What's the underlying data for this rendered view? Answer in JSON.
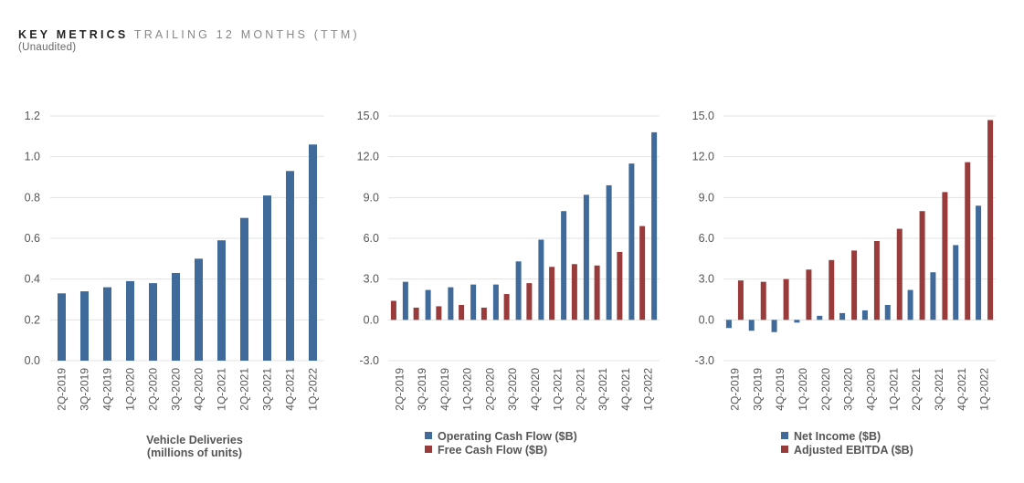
{
  "header": {
    "title": "KEY METRICS",
    "subtitle": "TRAILING 12 MONTHS (TTM)",
    "note": "(Unaudited)"
  },
  "colors": {
    "blue": "#3f6a9a",
    "red": "#9a3b3b",
    "grid": "#e3e3e3",
    "text": "#555555"
  },
  "chart_data": [
    {
      "type": "bar",
      "categories": [
        "2Q-2019",
        "3Q-2019",
        "4Q-2019",
        "1Q-2020",
        "2Q-2020",
        "3Q-2020",
        "4Q-2020",
        "1Q-2021",
        "2Q-2021",
        "3Q-2021",
        "4Q-2021",
        "1Q-2022"
      ],
      "series": [
        {
          "name": "Vehicle Deliveries",
          "color": "#3f6a9a",
          "values": [
            0.33,
            0.34,
            0.36,
            0.39,
            0.38,
            0.43,
            0.5,
            0.59,
            0.7,
            0.81,
            0.93,
            1.06
          ]
        }
      ],
      "yticks": [
        "0.0",
        "0.2",
        "0.4",
        "0.6",
        "0.8",
        "1.0",
        "1.2"
      ],
      "ylim": [
        0,
        1.2
      ],
      "caption": [
        "Vehicle Deliveries",
        "(millions of units)"
      ],
      "legend": []
    },
    {
      "type": "bar",
      "categories": [
        "2Q-2019",
        "3Q-2019",
        "4Q-2019",
        "1Q-2020",
        "2Q-2020",
        "3Q-2020",
        "4Q-2020",
        "1Q-2021",
        "2Q-2021",
        "3Q-2021",
        "4Q-2021",
        "1Q-2022"
      ],
      "series": [
        {
          "name": "Free Cash Flow ($B)",
          "color": "#9a3b3b",
          "values": [
            1.4,
            0.9,
            1.0,
            1.1,
            0.9,
            1.9,
            2.7,
            3.9,
            4.1,
            4.0,
            5.0,
            6.9
          ]
        },
        {
          "name": "Operating Cash Flow ($B)",
          "color": "#3f6a9a",
          "values": [
            2.8,
            2.2,
            2.4,
            2.6,
            2.6,
            4.3,
            5.9,
            8.0,
            9.2,
            9.9,
            11.5,
            13.8
          ]
        }
      ],
      "yticks": [
        "-3.0",
        "0.0",
        "3.0",
        "6.0",
        "9.0",
        "12.0",
        "15.0"
      ],
      "ylim": [
        -3,
        15
      ],
      "caption": [],
      "legend": [
        {
          "label": "Operating Cash Flow ($B)",
          "color": "#3f6a9a"
        },
        {
          "label": "Free Cash Flow ($B)",
          "color": "#9a3b3b"
        }
      ]
    },
    {
      "type": "bar",
      "categories": [
        "2Q-2019",
        "3Q-2019",
        "4Q-2019",
        "1Q-2020",
        "2Q-2020",
        "3Q-2020",
        "4Q-2020",
        "1Q-2021",
        "2Q-2021",
        "3Q-2021",
        "4Q-2021",
        "1Q-2022"
      ],
      "series": [
        {
          "name": "Net Income ($B)",
          "color": "#3f6a9a",
          "values": [
            -0.6,
            -0.8,
            -0.9,
            -0.2,
            0.3,
            0.5,
            0.7,
            1.1,
            2.2,
            3.5,
            5.5,
            8.4
          ]
        },
        {
          "name": "Adjusted EBITDA ($B)",
          "color": "#9a3b3b",
          "values": [
            2.9,
            2.8,
            3.0,
            3.7,
            4.4,
            5.1,
            5.8,
            6.7,
            8.0,
            9.4,
            11.6,
            14.7
          ]
        }
      ],
      "yticks": [
        "-3.0",
        "0.0",
        "3.0",
        "6.0",
        "9.0",
        "12.0",
        "15.0"
      ],
      "ylim": [
        -3,
        15
      ],
      "caption": [],
      "legend": [
        {
          "label": "Net Income ($B)",
          "color": "#3f6a9a"
        },
        {
          "label": "Adjusted EBITDA ($B)",
          "color": "#9a3b3b"
        }
      ]
    }
  ]
}
